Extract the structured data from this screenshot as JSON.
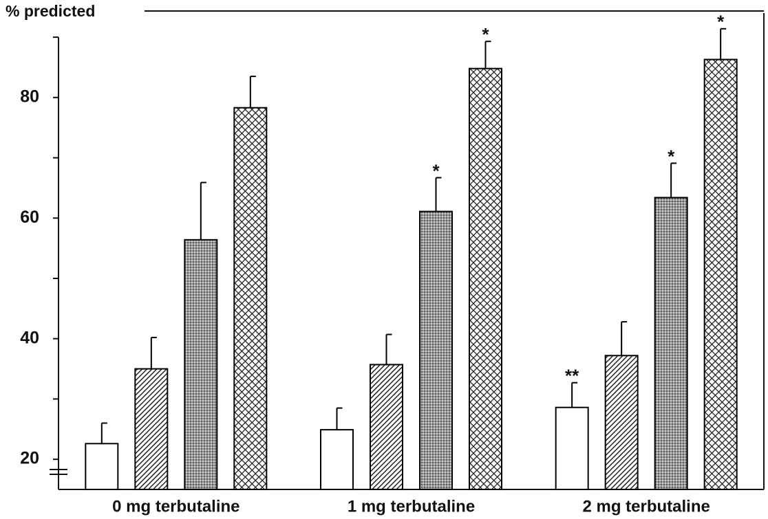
{
  "chart_data": {
    "type": "bar",
    "title": "% predicted",
    "categories": [
      "0 mg terbutaline",
      "1 mg terbutaline",
      "2 mg terbutaline"
    ],
    "series": [
      {
        "color": "#000000",
        "pattern": "none",
        "values": [
          22.6,
          24.9,
          28.6
        ],
        "errors": [
          3.4,
          3.6,
          4.1
        ],
        "annotations": [
          null,
          null,
          "**"
        ]
      },
      {
        "color": "#000000",
        "pattern": "hatch",
        "values": [
          35.0,
          35.7,
          37.2
        ],
        "errors": [
          5.2,
          5.0,
          5.6
        ],
        "annotations": [
          null,
          null,
          null
        ]
      },
      {
        "color": "#000000",
        "pattern": "dots",
        "values": [
          56.4,
          61.1,
          63.4
        ],
        "errors": [
          9.5,
          5.6,
          5.7
        ],
        "annotations": [
          null,
          "*",
          "*"
        ]
      },
      {
        "color": "#000000",
        "pattern": "crosshatch",
        "values": [
          78.3,
          84.8,
          86.3
        ],
        "errors": [
          5.2,
          4.5,
          5.1
        ],
        "annotations": [
          null,
          "*",
          "*"
        ]
      }
    ],
    "ylim": [
      15,
      94
    ],
    "yticks": [
      20,
      40,
      60,
      80
    ],
    "minor_yticks": [
      30,
      50,
      70,
      90
    ]
  }
}
